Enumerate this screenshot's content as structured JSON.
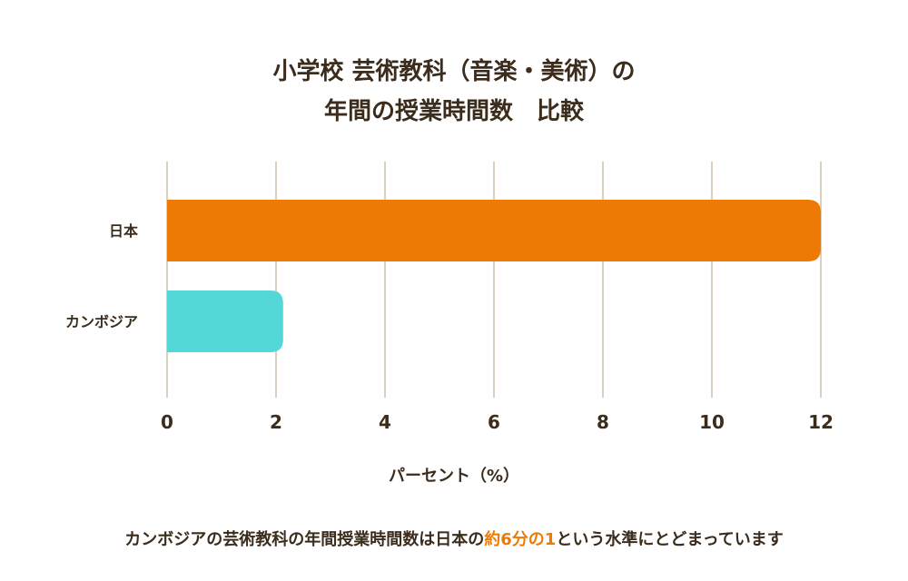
{
  "chart_data": {
    "type": "bar",
    "orientation": "horizontal",
    "title_line1": "小学校 芸術教科（音楽・美術）の",
    "title_line2": "年間の授業時間数　比較",
    "categories": [
      "日本",
      "カンボジア"
    ],
    "values": [
      12,
      2.13
    ],
    "colors": [
      "#ee7a06",
      "#53d7d7"
    ],
    "xlabel": "パーセント（%）",
    "xlim": [
      0,
      12
    ],
    "xticks": [
      "0",
      "2",
      "4",
      "6",
      "8",
      "10",
      "12"
    ],
    "grid": true
  },
  "footnote": {
    "before": "カンボジアの芸術教科の年間授業時間数は日本の",
    "highlight": "約6分の1",
    "after": "という水準にとどまっています"
  }
}
